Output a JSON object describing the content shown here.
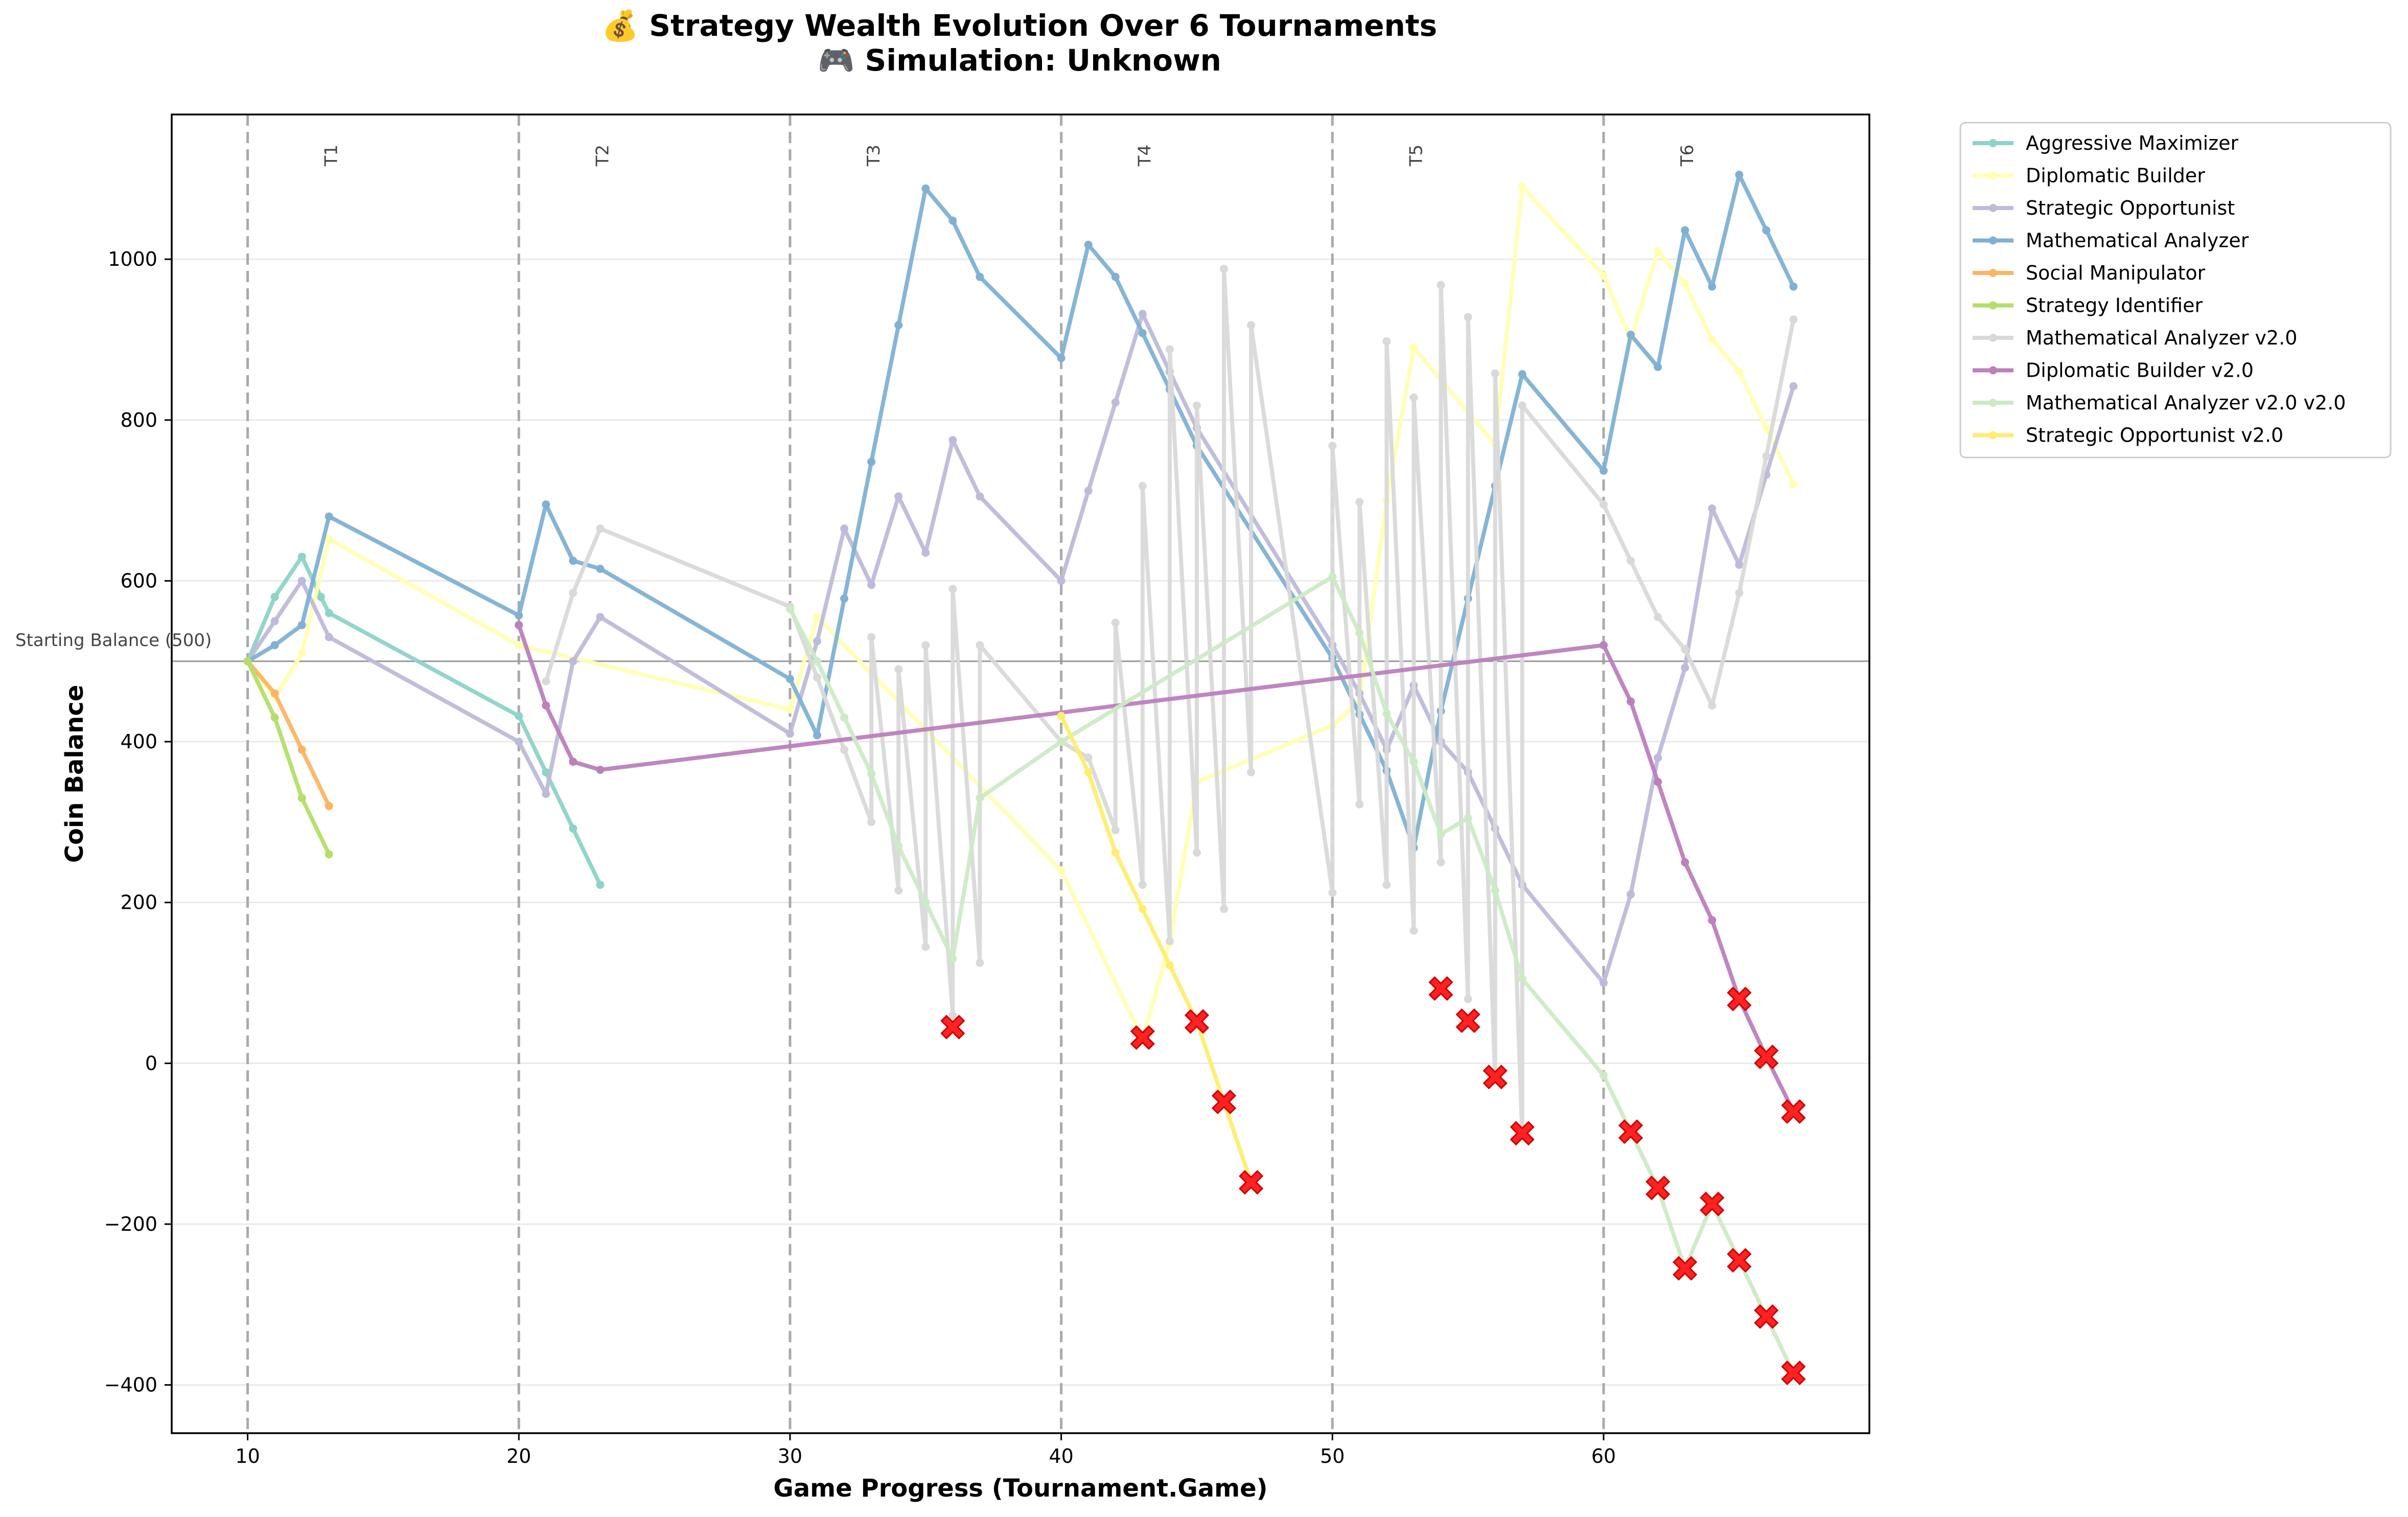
{
  "chart_data": {
    "type": "line",
    "title_line1": "💰 Strategy Wealth Evolution Over 6 Tournaments",
    "title_line2": "🎮 Simulation: Unknown",
    "xlabel": "Game Progress (Tournament.Game)",
    "ylabel": "Coin Balance",
    "xlim": [
      7.2,
      69.8
    ],
    "ylim": [
      -460,
      1180
    ],
    "xticks": [
      10,
      20,
      30,
      40,
      50,
      60
    ],
    "yticks": [
      -400,
      -200,
      0,
      200,
      400,
      600,
      800,
      1000
    ],
    "ytick_labels": [
      "−400",
      "−200",
      "0",
      "200",
      "400",
      "600",
      "800",
      "1000"
    ],
    "grid": "horizontal",
    "legend_position": "outside-top-right",
    "reference_line": {
      "y": 500,
      "label": "Starting Balance (500)"
    },
    "tournament_boundaries": [
      10,
      20,
      30,
      40,
      50,
      60
    ],
    "tournament_labels": [
      {
        "x": 13.3,
        "text": "T1"
      },
      {
        "x": 23.3,
        "text": "T2"
      },
      {
        "x": 33.3,
        "text": "T3"
      },
      {
        "x": 43.3,
        "text": "T4"
      },
      {
        "x": 53.3,
        "text": "T5"
      },
      {
        "x": 63.3,
        "text": "T6"
      }
    ],
    "series": [
      {
        "name": "Aggressive Maximizer",
        "color": "#8dd3c7",
        "x": [
          10,
          11,
          12,
          12.7,
          13,
          20,
          21,
          22,
          23
        ],
        "y": [
          500,
          580,
          630,
          580,
          560,
          432,
          362,
          292,
          222
        ]
      },
      {
        "name": "Diplomatic Builder",
        "color": "#ffffb3",
        "x": [
          10,
          11,
          12,
          13,
          20,
          30,
          31,
          40,
          43,
          44,
          45,
          50,
          51,
          52,
          53,
          56,
          57,
          60,
          61,
          62,
          63,
          64,
          65,
          66,
          67
        ],
        "y": [
          500,
          455,
          510,
          652,
          520,
          440,
          555,
          240,
          30,
          150,
          350,
          420,
          450,
          700,
          890,
          770,
          1090,
          980,
          900,
          1010,
          970,
          900,
          860,
          790,
          720
        ]
      },
      {
        "name": "Strategic Opportunist",
        "color": "#bebada",
        "x": [
          10,
          11,
          12,
          13,
          20,
          21,
          22,
          23,
          30,
          31,
          32,
          33,
          34,
          35,
          36,
          37,
          40,
          41,
          42,
          43,
          44,
          45,
          50,
          51,
          52,
          53,
          54,
          55,
          56,
          57,
          60,
          61,
          62,
          63,
          64,
          65,
          66,
          67
        ],
        "y": [
          500,
          550,
          600,
          530,
          400,
          335,
          500,
          555,
          410,
          525,
          665,
          595,
          705,
          635,
          775,
          705,
          600,
          712,
          822,
          932,
          860,
          790,
          520,
          460,
          390,
          470,
          400,
          362,
          292,
          222,
          100,
          210,
          380,
          492,
          690,
          620,
          732,
          842
        ]
      },
      {
        "name": "Mathematical Analyzer",
        "color": "#80b1d3",
        "x": [
          10,
          11,
          12,
          13,
          20,
          21,
          22,
          23,
          30,
          31,
          32,
          33,
          34,
          35,
          36,
          37,
          40,
          41,
          42,
          43,
          44,
          45,
          50,
          51,
          52,
          53,
          54,
          55,
          56,
          57,
          60,
          61,
          62,
          63,
          64,
          65,
          66,
          67
        ],
        "y": [
          500,
          520,
          545,
          680,
          557,
          695,
          625,
          615,
          478,
          408,
          578,
          748,
          918,
          1088,
          1048,
          978,
          877,
          1018,
          978,
          908,
          838,
          768,
          504,
          434,
          364,
          268,
          438,
          578,
          718,
          857,
          737,
          906,
          866,
          1036,
          966,
          1105,
          1036,
          966
        ]
      },
      {
        "name": "Social Manipulator",
        "color": "#fdb462",
        "x": [
          10,
          11,
          12,
          13
        ],
        "y": [
          500,
          460,
          390,
          320
        ]
      },
      {
        "name": "Strategy Identifier",
        "color": "#b3de69",
        "x": [
          10,
          11,
          12,
          13
        ],
        "y": [
          500,
          430,
          330,
          260
        ]
      },
      {
        "name": "Mathematical Analyzer v2.0",
        "color": "#d9d9d9",
        "x": [
          21,
          22,
          23,
          30,
          31,
          32,
          33,
          33,
          34,
          34,
          35,
          35,
          36,
          36,
          37,
          37,
          40,
          41,
          42,
          42,
          43,
          43,
          44,
          44,
          45,
          45,
          46,
          46,
          47,
          47,
          50,
          50,
          51,
          51,
          52,
          52,
          53,
          53,
          54,
          54,
          55,
          55,
          56,
          56,
          57,
          57,
          60,
          61,
          62,
          63,
          64,
          65,
          66,
          67
        ],
        "y": [
          475,
          585,
          665,
          568,
          480,
          390,
          300,
          530,
          215,
          490,
          145,
          520,
          60,
          590,
          125,
          520,
          400,
          380,
          290,
          548,
          222,
          718,
          152,
          888,
          262,
          818,
          192,
          988,
          362,
          918,
          212,
          768,
          322,
          698,
          222,
          898,
          165,
          828,
          250,
          968,
          80,
          928,
          -20,
          858,
          -90,
          818,
          695,
          625,
          555,
          515,
          445,
          585,
          755,
          925
        ]
      },
      {
        "name": "Diplomatic Builder v2.0",
        "color": "#bc80bd",
        "x": [
          20,
          21,
          22,
          23,
          60,
          61,
          62,
          63,
          64,
          65,
          66,
          67
        ],
        "y": [
          545,
          445,
          375,
          365,
          520,
          450,
          350,
          250,
          178,
          80,
          8,
          -60
        ]
      },
      {
        "name": "Mathematical Analyzer v2.0 v2.0",
        "color": "#ccebc5",
        "x": [
          30,
          31,
          32,
          33,
          34,
          35,
          36,
          37,
          40,
          50,
          51,
          52,
          53,
          54,
          55,
          56,
          57,
          60,
          61,
          62,
          63,
          64,
          65,
          66,
          67
        ],
        "y": [
          565,
          500,
          430,
          360,
          270,
          200,
          130,
          330,
          400,
          605,
          535,
          435,
          375,
          285,
          305,
          215,
          105,
          -15,
          -85,
          -155,
          -255,
          -175,
          -245,
          -315,
          -385
        ]
      },
      {
        "name": "Strategic Opportunist v2.0",
        "color": "#ffed6f",
        "x": [
          40,
          41,
          42,
          43,
          44,
          45,
          46,
          47
        ],
        "y": [
          432,
          362,
          262,
          192,
          122,
          52,
          -48,
          -148
        ]
      }
    ],
    "eliminations": [
      {
        "x": 36,
        "y": 45
      },
      {
        "x": 43,
        "y": 32
      },
      {
        "x": 45,
        "y": 52
      },
      {
        "x": 46,
        "y": -48
      },
      {
        "x": 47,
        "y": -148
      },
      {
        "x": 54,
        "y": 93
      },
      {
        "x": 55,
        "y": 53
      },
      {
        "x": 56,
        "y": -17
      },
      {
        "x": 57,
        "y": -87
      },
      {
        "x": 61,
        "y": -85
      },
      {
        "x": 62,
        "y": -155
      },
      {
        "x": 63,
        "y": -255
      },
      {
        "x": 64,
        "y": -175
      },
      {
        "x": 65,
        "y": -245
      },
      {
        "x": 66,
        "y": -315
      },
      {
        "x": 67,
        "y": -385
      },
      {
        "x": 65,
        "y": 80
      },
      {
        "x": 66,
        "y": 8
      },
      {
        "x": 67,
        "y": -60
      }
    ],
    "elimination_color": "#ff2222"
  }
}
